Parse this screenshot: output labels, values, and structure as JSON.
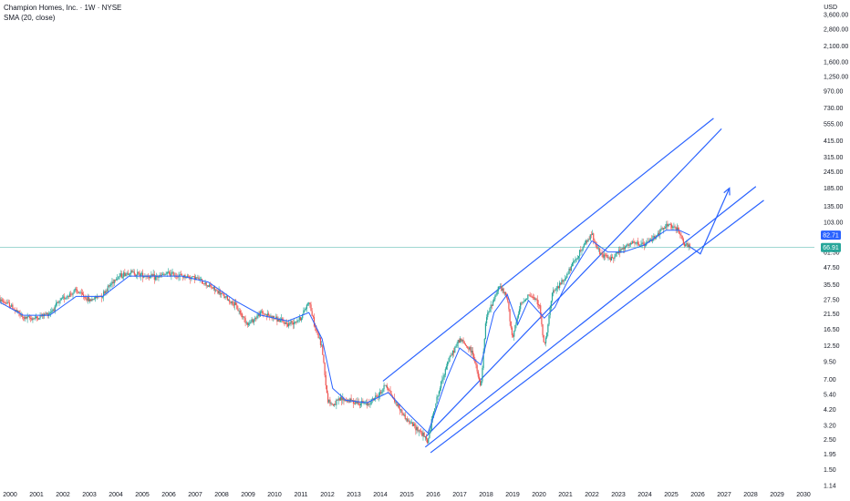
{
  "legend": {
    "title": "Champion Homes, Inc. · 1W · NYSE",
    "indicator": "SMA (20, close)"
  },
  "currency": "USD",
  "price_labels": {
    "sma_value": "82.71",
    "last_price": "66.91"
  },
  "colors": {
    "up": "#26a69a",
    "down": "#ef5350",
    "sma": "#2962ff",
    "channel": "#2962ff",
    "last_price_line": "#26a69a",
    "sma_badge": "#2962ff",
    "last_badge": "#26a69a"
  },
  "chart_data": {
    "type": "line",
    "title": "Champion Homes, Inc. · 1W · NYSE",
    "xlabel": "",
    "ylabel": "",
    "y_scale": "log",
    "ylim": [
      1.14,
      3900
    ],
    "xlim": [
      "2000-01",
      "2030-06"
    ],
    "x_ticks": [
      "2000",
      "2001",
      "2002",
      "2003",
      "2004",
      "2005",
      "2006",
      "2007",
      "2008",
      "2009",
      "2010",
      "2011",
      "2012",
      "2013",
      "2014",
      "2015",
      "2016",
      "2017",
      "2018",
      "2019",
      "2020",
      "2021",
      "2022",
      "2023",
      "2024",
      "2025",
      "2026",
      "2027",
      "2028",
      "2029",
      "2030"
    ],
    "y_ticks": [
      1.14,
      1.5,
      1.95,
      2.5,
      3.2,
      4.2,
      5.4,
      7.0,
      9.5,
      12.5,
      16.5,
      21.5,
      27.5,
      35.5,
      47.5,
      61.5,
      103.0,
      135.0,
      185.0,
      245.0,
      315.0,
      415.0,
      555.0,
      730.0,
      970.0,
      1250.0,
      1600.0,
      2100.0,
      2800.0,
      3600.0
    ],
    "y_tick_labels": [
      "1.14",
      "1.50",
      "1.95",
      "2.50",
      "3.20",
      "4.20",
      "5.40",
      "7.00",
      "9.50",
      "12.50",
      "16.50",
      "21.50",
      "27.50",
      "35.50",
      "47.50",
      "61.50",
      "103.00",
      "135.00",
      "185.00",
      "245.00",
      "315.00",
      "415.00",
      "555.00",
      "730.00",
      "970.00",
      "1,250.00",
      "1,600.00",
      "2,100.00",
      "2,800.00",
      "3,600.00"
    ],
    "price_path": [
      [
        1999.5,
        28
      ],
      [
        2000.0,
        25
      ],
      [
        2000.5,
        20
      ],
      [
        2001.0,
        20
      ],
      [
        2001.5,
        22
      ],
      [
        2002.0,
        28
      ],
      [
        2002.5,
        32
      ],
      [
        2003.0,
        27
      ],
      [
        2003.5,
        30
      ],
      [
        2004.0,
        40
      ],
      [
        2004.5,
        44
      ],
      [
        2005.0,
        42
      ],
      [
        2005.5,
        40
      ],
      [
        2006.0,
        43
      ],
      [
        2006.5,
        41
      ],
      [
        2007.0,
        40
      ],
      [
        2007.5,
        35
      ],
      [
        2008.0,
        30
      ],
      [
        2008.5,
        25
      ],
      [
        2009.0,
        18
      ],
      [
        2009.5,
        22
      ],
      [
        2010.0,
        20
      ],
      [
        2010.5,
        18
      ],
      [
        2011.0,
        20
      ],
      [
        2011.3,
        27
      ],
      [
        2011.5,
        18
      ],
      [
        2011.8,
        12
      ],
      [
        2012.0,
        5
      ],
      [
        2012.2,
        4.5
      ],
      [
        2012.5,
        5
      ],
      [
        2013.0,
        4.8
      ],
      [
        2013.5,
        4.6
      ],
      [
        2014.0,
        5.5
      ],
      [
        2014.2,
        6.5
      ],
      [
        2014.5,
        5
      ],
      [
        2015.0,
        3.5
      ],
      [
        2015.5,
        2.9
      ],
      [
        2015.8,
        2.4
      ],
      [
        2016.0,
        4
      ],
      [
        2016.5,
        9
      ],
      [
        2017.0,
        14
      ],
      [
        2017.5,
        11
      ],
      [
        2017.8,
        6
      ],
      [
        2018.0,
        20
      ],
      [
        2018.5,
        35
      ],
      [
        2018.8,
        28
      ],
      [
        2019.0,
        14
      ],
      [
        2019.3,
        25
      ],
      [
        2019.6,
        30
      ],
      [
        2020.0,
        26
      ],
      [
        2020.2,
        12
      ],
      [
        2020.5,
        30
      ],
      [
        2021.0,
        40
      ],
      [
        2021.5,
        60
      ],
      [
        2022.0,
        85
      ],
      [
        2022.3,
        60
      ],
      [
        2022.7,
        55
      ],
      [
        2023.0,
        62
      ],
      [
        2023.5,
        72
      ],
      [
        2024.0,
        70
      ],
      [
        2024.5,
        85
      ],
      [
        2024.9,
        100
      ],
      [
        2025.3,
        88
      ],
      [
        2025.5,
        70
      ],
      [
        2025.7,
        66.91
      ]
    ],
    "sma_path": [
      [
        1999.5,
        27
      ],
      [
        2000.5,
        21
      ],
      [
        2001.5,
        21
      ],
      [
        2002.5,
        29
      ],
      [
        2003.5,
        29
      ],
      [
        2004.5,
        41
      ],
      [
        2005.5,
        41
      ],
      [
        2006.5,
        41
      ],
      [
        2007.5,
        37
      ],
      [
        2008.5,
        27
      ],
      [
        2009.5,
        21
      ],
      [
        2010.5,
        19
      ],
      [
        2011.3,
        22
      ],
      [
        2011.8,
        14
      ],
      [
        2012.2,
        6
      ],
      [
        2012.7,
        4.9
      ],
      [
        2013.5,
        4.7
      ],
      [
        2014.3,
        5.6
      ],
      [
        2015.0,
        4
      ],
      [
        2015.8,
        2.8
      ],
      [
        2016.5,
        7
      ],
      [
        2017.0,
        12
      ],
      [
        2017.8,
        9
      ],
      [
        2018.3,
        22
      ],
      [
        2018.8,
        30
      ],
      [
        2019.2,
        18
      ],
      [
        2019.6,
        27
      ],
      [
        2020.2,
        20
      ],
      [
        2020.6,
        24
      ],
      [
        2021.2,
        42
      ],
      [
        2022.0,
        75
      ],
      [
        2022.6,
        62
      ],
      [
        2023.2,
        62
      ],
      [
        2024.0,
        70
      ],
      [
        2024.8,
        90
      ],
      [
        2025.3,
        90
      ],
      [
        2025.7,
        82.71
      ]
    ],
    "channel_lines": [
      {
        "from": [
          2014.1,
          6.8
        ],
        "to": [
          2026.6,
          610
        ]
      },
      {
        "from": [
          2015.7,
          2.6
        ],
        "to": [
          2026.9,
          510
        ]
      },
      {
        "from": [
          2015.7,
          2.2
        ],
        "to": [
          2028.2,
          190
        ]
      },
      {
        "from": [
          2015.9,
          2.0
        ],
        "to": [
          2028.5,
          150
        ]
      }
    ],
    "projection_arrow": {
      "points": [
        [
          2025.7,
          68
        ],
        [
          2026.1,
          60
        ],
        [
          2027.2,
          185
        ]
      ]
    },
    "last_price": 66.91,
    "sma_last": 82.71
  }
}
